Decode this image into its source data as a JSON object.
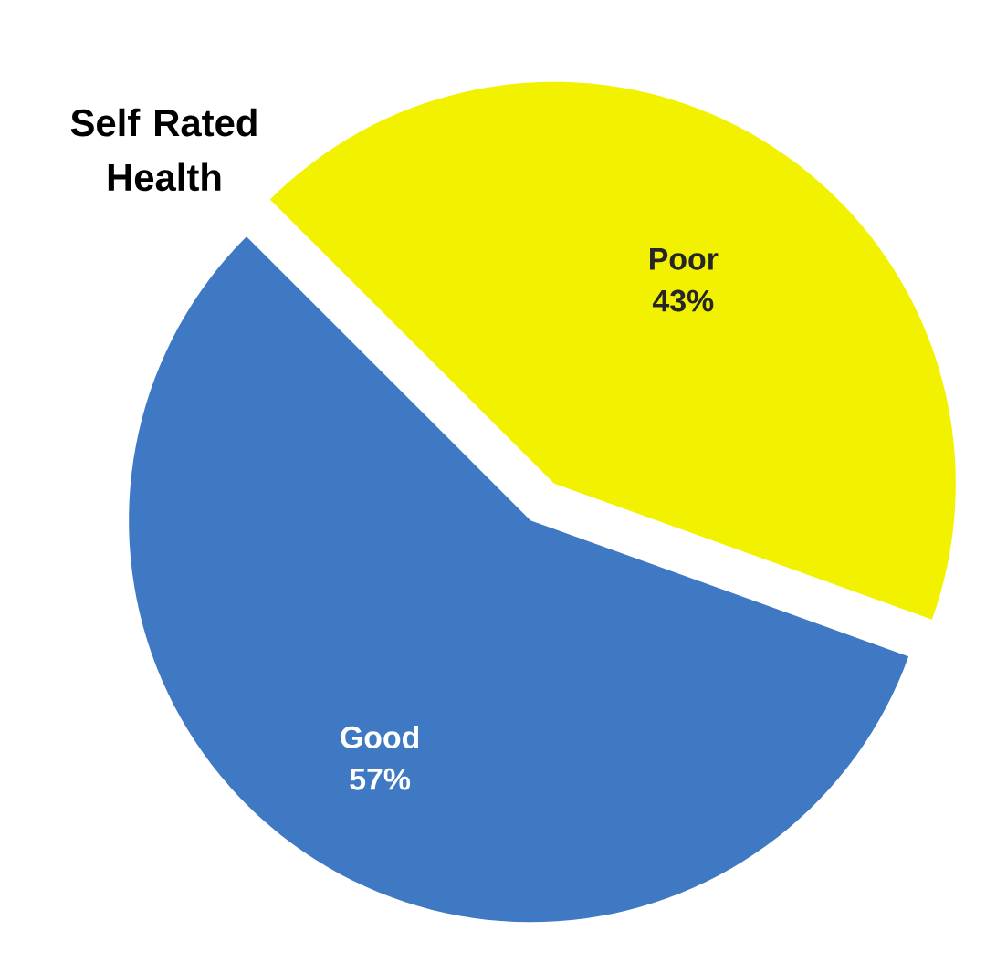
{
  "chart_data": {
    "type": "pie",
    "title": "Self Rated Health",
    "categories": [
      "Poor",
      "Good"
    ],
    "values": [
      43,
      57
    ],
    "value_labels": [
      "43%",
      "57%"
    ],
    "colors": [
      "#f2f200",
      "#3f78c3"
    ]
  }
}
